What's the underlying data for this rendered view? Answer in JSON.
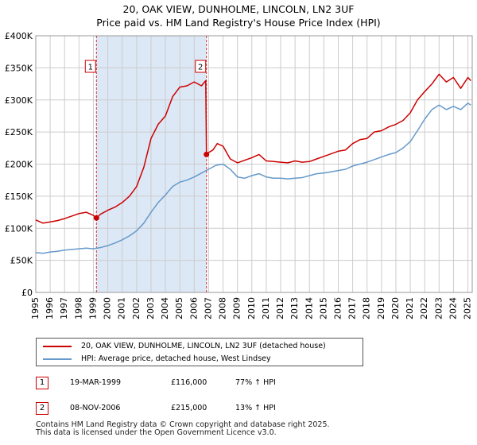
{
  "title_line1": "20, OAK VIEW, DUNHOLME, LINCOLN, LN2 3UF",
  "title_line2": "Price paid vs. HM Land Registry's House Price Index (HPI)",
  "legend": {
    "property": "20, OAK VIEW, DUNHOLME, LINCOLN, LN2 3UF (detached house)",
    "hpi": "HPI: Average price, detached house, West Lindsey"
  },
  "sales": [
    {
      "num": "1",
      "date": "19-MAR-1999",
      "price": "£116,000",
      "hpi_change": "77% ↑ HPI"
    },
    {
      "num": "2",
      "date": "08-NOV-2006",
      "price": "£215,000",
      "hpi_change": "13% ↑ HPI"
    }
  ],
  "footer": {
    "line1": "Contains HM Land Registry data © Crown copyright and database right 2025.",
    "line2": "This data is licensed under the Open Government Licence v3.0."
  },
  "colors": {
    "property": "#cc0000",
    "hpi": "#6699cc",
    "shade": "#dce8f5",
    "grid": "#cccccc"
  },
  "chart_data": {
    "type": "line",
    "title": "20, OAK VIEW, DUNHOLME, LINCOLN, LN2 3UF — Price paid vs. HM Land Registry's House Price Index (HPI)",
    "xlabel": "",
    "ylabel": "",
    "xlim": [
      1995,
      2025.3
    ],
    "ylim": [
      0,
      400000
    ],
    "x_ticks": [
      1995,
      1996,
      1997,
      1998,
      1999,
      2000,
      2001,
      2002,
      2003,
      2004,
      2005,
      2006,
      2007,
      2008,
      2009,
      2010,
      2011,
      2012,
      2013,
      2014,
      2015,
      2016,
      2017,
      2018,
      2019,
      2020,
      2021,
      2022,
      2023,
      2024,
      2025
    ],
    "y_ticks": [
      0,
      50000,
      100000,
      150000,
      200000,
      250000,
      300000,
      350000,
      400000
    ],
    "y_tick_labels": [
      "£0",
      "£50K",
      "£100K",
      "£150K",
      "£200K",
      "£250K",
      "£300K",
      "£350K",
      "£400K"
    ],
    "grid": true,
    "shaded_range": [
      1999.21,
      2006.85
    ],
    "markers": [
      {
        "label": "1",
        "x": 1999.21,
        "y": 116000
      },
      {
        "label": "2",
        "x": 2006.85,
        "y": 215000
      }
    ],
    "series": [
      {
        "name": "20, OAK VIEW, DUNHOLME, LINCOLN, LN2 3UF (detached house)",
        "x": [
          1995.0,
          1995.5,
          1996.0,
          1996.5,
          1997.0,
          1997.5,
          1998.0,
          1998.5,
          1999.0,
          1999.21,
          1999.5,
          2000.0,
          2000.5,
          2001.0,
          2001.5,
          2002.0,
          2002.5,
          2003.0,
          2003.5,
          2004.0,
          2004.5,
          2005.0,
          2005.5,
          2006.0,
          2006.5,
          2006.8,
          2006.85,
          2007.0,
          2007.3,
          2007.6,
          2008.0,
          2008.5,
          2009.0,
          2009.5,
          2010.0,
          2010.5,
          2011.0,
          2011.5,
          2012.0,
          2012.5,
          2013.0,
          2013.5,
          2014.0,
          2014.5,
          2015.0,
          2015.5,
          2016.0,
          2016.5,
          2017.0,
          2017.5,
          2018.0,
          2018.5,
          2019.0,
          2019.5,
          2020.0,
          2020.5,
          2021.0,
          2021.5,
          2022.0,
          2022.5,
          2023.0,
          2023.5,
          2024.0,
          2024.5,
          2025.0,
          2025.2
        ],
        "y": [
          113000,
          108000,
          110000,
          112000,
          115000,
          119000,
          123000,
          125000,
          120000,
          116000,
          122000,
          128000,
          133000,
          140000,
          150000,
          165000,
          195000,
          240000,
          262000,
          275000,
          305000,
          320000,
          322000,
          328000,
          322000,
          330000,
          215000,
          218000,
          222000,
          232000,
          228000,
          208000,
          202000,
          206000,
          210000,
          215000,
          205000,
          204000,
          203000,
          202000,
          205000,
          203000,
          204000,
          208000,
          212000,
          216000,
          220000,
          222000,
          232000,
          238000,
          240000,
          250000,
          252000,
          258000,
          262000,
          268000,
          280000,
          300000,
          313000,
          325000,
          340000,
          328000,
          335000,
          318000,
          335000,
          330000
        ]
      },
      {
        "name": "HPI: Average price, detached house, West Lindsey",
        "x": [
          1995.0,
          1995.5,
          1996.0,
          1996.5,
          1997.0,
          1997.5,
          1998.0,
          1998.5,
          1999.0,
          1999.5,
          2000.0,
          2000.5,
          2001.0,
          2001.5,
          2002.0,
          2002.5,
          2003.0,
          2003.5,
          2004.0,
          2004.5,
          2005.0,
          2005.5,
          2006.0,
          2006.5,
          2007.0,
          2007.5,
          2008.0,
          2008.5,
          2009.0,
          2009.5,
          2010.0,
          2010.5,
          2011.0,
          2011.5,
          2012.0,
          2012.5,
          2013.0,
          2013.5,
          2014.0,
          2014.5,
          2015.0,
          2015.5,
          2016.0,
          2016.5,
          2017.0,
          2017.5,
          2018.0,
          2018.5,
          2019.0,
          2019.5,
          2020.0,
          2020.5,
          2021.0,
          2021.5,
          2022.0,
          2022.5,
          2023.0,
          2023.5,
          2024.0,
          2024.5,
          2025.0,
          2025.2
        ],
        "y": [
          62000,
          61000,
          63000,
          64000,
          66000,
          67000,
          68000,
          69000,
          68000,
          70000,
          73000,
          77000,
          82000,
          88000,
          96000,
          108000,
          125000,
          140000,
          152000,
          165000,
          172000,
          175000,
          180000,
          186000,
          192000,
          198000,
          200000,
          192000,
          180000,
          178000,
          182000,
          185000,
          180000,
          178000,
          178000,
          177000,
          178000,
          179000,
          182000,
          185000,
          186000,
          188000,
          190000,
          192000,
          197000,
          200000,
          203000,
          207000,
          211000,
          215000,
          218000,
          225000,
          235000,
          252000,
          270000,
          285000,
          292000,
          285000,
          290000,
          285000,
          295000,
          292000
        ]
      }
    ]
  }
}
